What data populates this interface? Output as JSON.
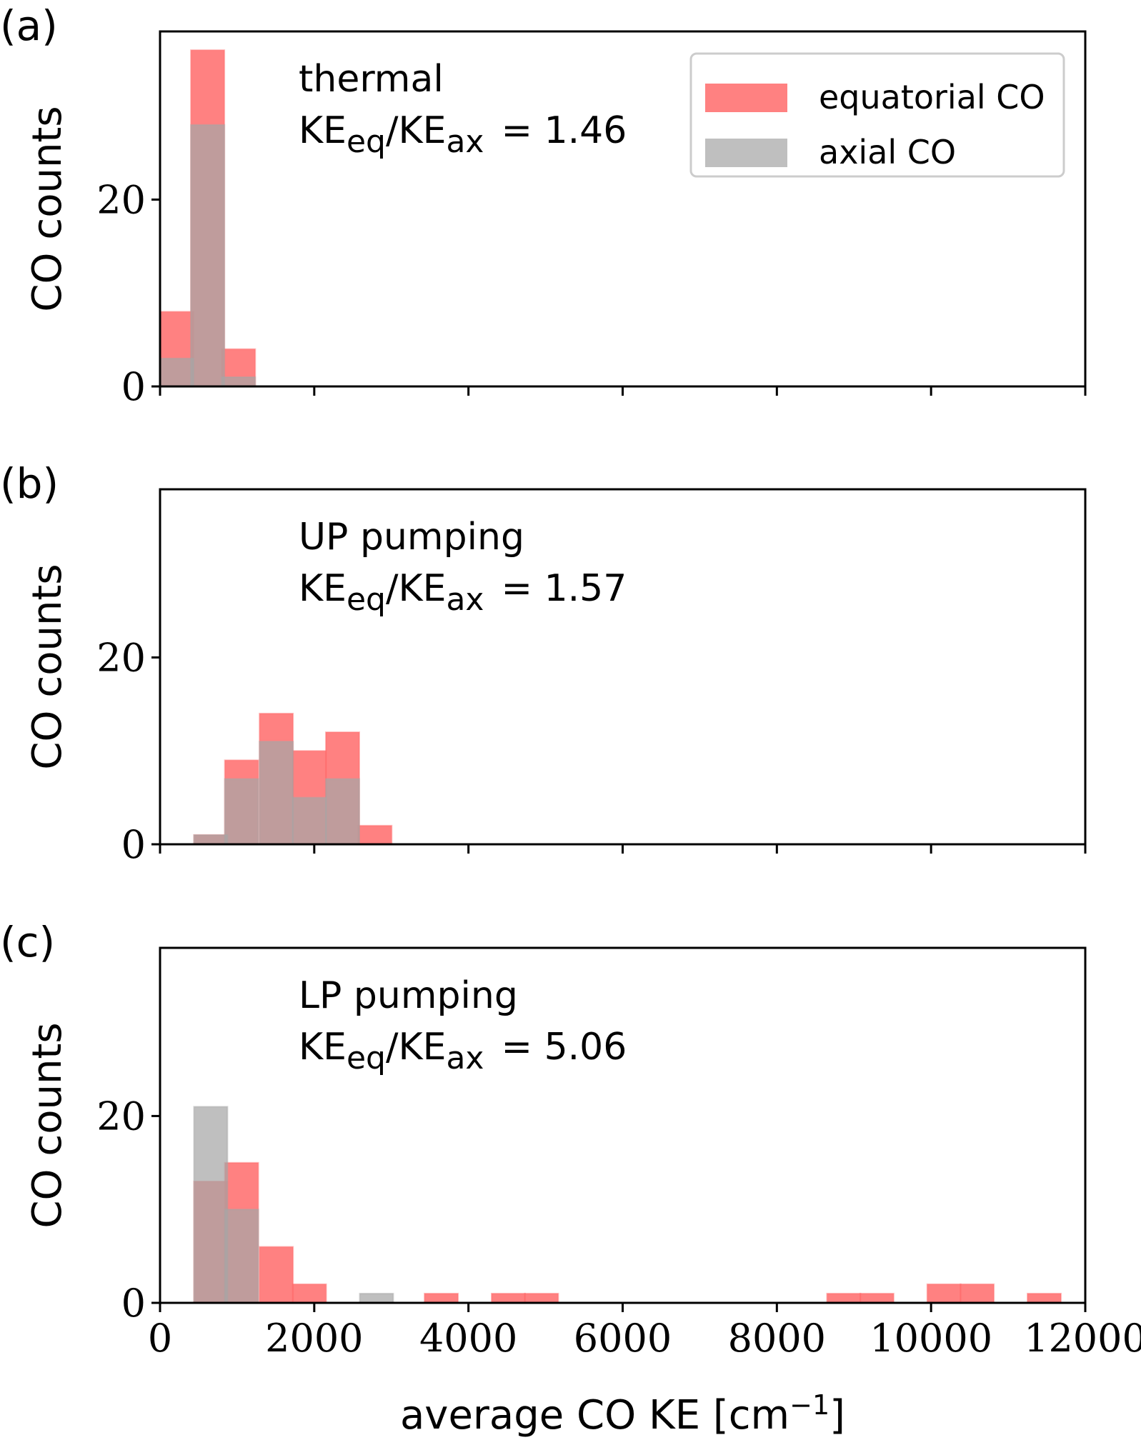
{
  "chart_data": [
    {
      "type": "bar",
      "panel_label": "(a)",
      "annotation": {
        "line1": "thermal",
        "ke_prefix": "KE",
        "sub_eq": "eq",
        "slash": "/KE",
        "sub_ax": "ax",
        "value": "=  1.46"
      },
      "ylabel": "CO counts",
      "xlim": [
        0,
        12000
      ],
      "ylim": [
        0,
        38
      ],
      "yticks": [
        0,
        20
      ],
      "xticks": [
        0,
        2000,
        4000,
        6000,
        8000,
        10000,
        12000
      ],
      "show_xtick_labels": false,
      "bin_width": 435,
      "legend": {
        "position": "top-right",
        "entries": [
          "equatorial CO",
          "axial CO"
        ]
      },
      "series": [
        {
          "name": "equatorial CO",
          "color": "#ff6b6b",
          "bins": [
            [
              0,
              8
            ],
            [
              400,
              36
            ],
            [
              800,
              4
            ]
          ]
        },
        {
          "name": "axial CO",
          "color": "#a6a6a6",
          "bins": [
            [
              0,
              3
            ],
            [
              400,
              28
            ],
            [
              800,
              1
            ]
          ]
        }
      ]
    },
    {
      "type": "bar",
      "panel_label": "(b)",
      "annotation": {
        "line1": "UP pumping",
        "ke_prefix": "KE",
        "sub_eq": "eq",
        "slash": "/KE",
        "sub_ax": "ax",
        "value": "=  1.57"
      },
      "ylabel": "CO counts",
      "xlim": [
        0,
        12000
      ],
      "ylim": [
        0,
        38
      ],
      "yticks": [
        0,
        20
      ],
      "xticks": [
        0,
        2000,
        4000,
        6000,
        8000,
        10000,
        12000
      ],
      "show_xtick_labels": false,
      "bin_width": 435,
      "series": [
        {
          "name": "equatorial CO",
          "color": "#ff6b6b",
          "bins": [
            [
              440,
              1
            ],
            [
              840,
              9
            ],
            [
              1290,
              14
            ],
            [
              1720,
              10
            ],
            [
              2150,
              12
            ],
            [
              2570,
              2
            ]
          ]
        },
        {
          "name": "axial CO",
          "color": "#a6a6a6",
          "bins": [
            [
              440,
              1
            ],
            [
              840,
              7
            ],
            [
              1290,
              11
            ],
            [
              1720,
              5
            ],
            [
              2150,
              7
            ]
          ]
        }
      ]
    },
    {
      "type": "bar",
      "panel_label": "(c)",
      "annotation": {
        "line1": "LP pumping",
        "ke_prefix": "KE",
        "sub_eq": "eq",
        "slash": "/KE",
        "sub_ax": "ax",
        "value": "=  5.06"
      },
      "ylabel": "CO counts",
      "xlabel": "average CO KE [cm",
      "xlabel_sup": "−1",
      "xlabel_end": "]",
      "xlim": [
        0,
        12000
      ],
      "ylim": [
        0,
        38
      ],
      "yticks": [
        0,
        20
      ],
      "xticks": [
        0,
        2000,
        4000,
        6000,
        8000,
        10000,
        12000
      ],
      "show_xtick_labels": true,
      "bin_width": 435,
      "series": [
        {
          "name": "equatorial CO",
          "color": "#ff6b6b",
          "bins": [
            [
              440,
              13
            ],
            [
              840,
              15
            ],
            [
              1290,
              6
            ],
            [
              1720,
              2
            ],
            [
              3430,
              1
            ],
            [
              4300,
              1
            ],
            [
              4730,
              1
            ],
            [
              8650,
              1
            ],
            [
              9080,
              1
            ],
            [
              9950,
              2
            ],
            [
              10380,
              2
            ],
            [
              11250,
              1
            ]
          ]
        },
        {
          "name": "axial CO",
          "color": "#a6a6a6",
          "bins": [
            [
              440,
              21
            ],
            [
              840,
              10
            ],
            [
              2590,
              1
            ]
          ]
        }
      ]
    }
  ]
}
